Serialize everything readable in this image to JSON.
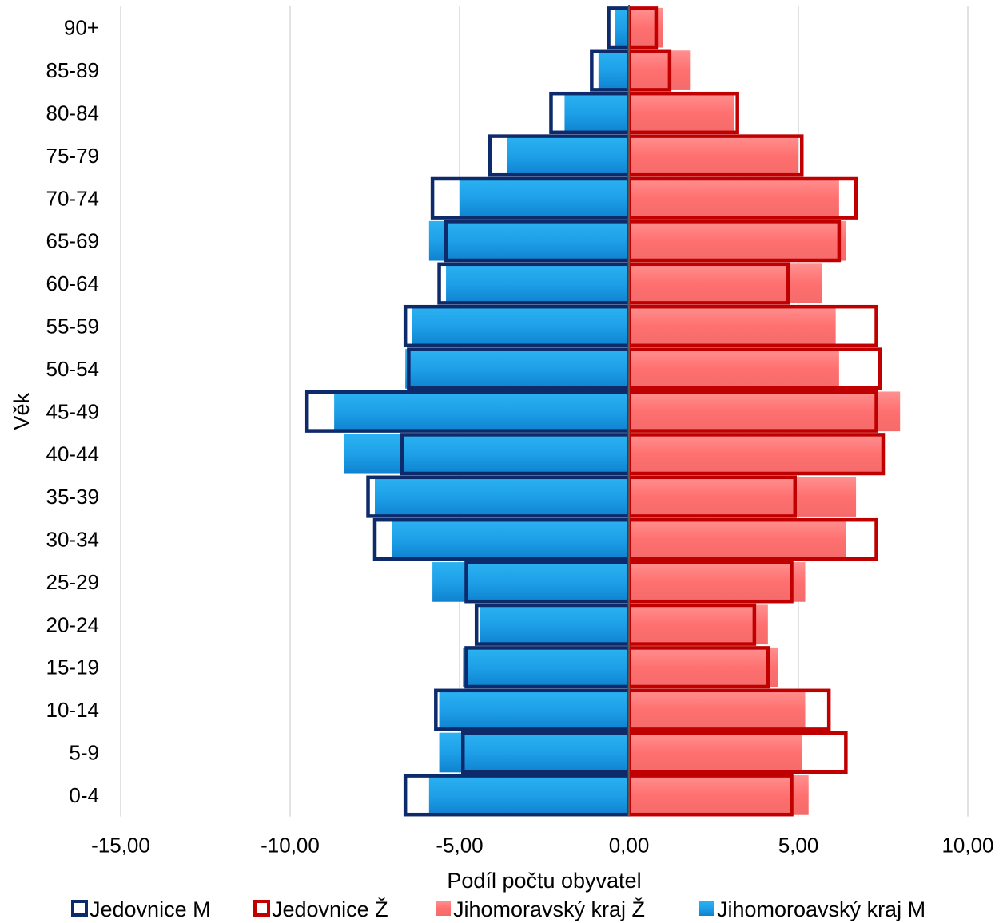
{
  "chart_data": {
    "type": "bar",
    "orientation": "horizontal",
    "subtype": "population-pyramid",
    "title": "",
    "xlabel": "Podíl počtu obyvatel",
    "ylabel": "Věk",
    "xlim": [
      -15,
      10
    ],
    "x_ticks": [
      -15,
      -10,
      -5,
      0,
      5,
      10
    ],
    "x_tick_labels": [
      "-15,00",
      "-10,00",
      "-5,00",
      "0,00",
      "5,00",
      "10,00"
    ],
    "grid": "vertical",
    "legend_position": "bottom",
    "categories": [
      "0-4",
      "5-9",
      "10-14",
      "15-19",
      "20-24",
      "25-29",
      "30-34",
      "35-39",
      "40-44",
      "45-49",
      "50-54",
      "55-59",
      "60-64",
      "65-69",
      "70-74",
      "75-79",
      "80-84",
      "85-89",
      "90+"
    ],
    "series": [
      {
        "name": "Jedovnice M",
        "style": "outline",
        "color": "#0d2a6b",
        "values": [
          -6.6,
          -4.9,
          -5.7,
          -4.8,
          -4.5,
          -4.8,
          -7.5,
          -7.7,
          -6.7,
          -9.5,
          -6.5,
          -6.6,
          -5.6,
          -5.4,
          -5.8,
          -4.1,
          -2.3,
          -1.1,
          -0.6
        ]
      },
      {
        "name": "Jedovnice Ž",
        "style": "outline",
        "color": "#c00000",
        "values": [
          4.8,
          6.4,
          5.9,
          4.1,
          3.7,
          4.8,
          7.3,
          4.9,
          7.5,
          7.3,
          7.4,
          7.3,
          4.7,
          6.2,
          6.7,
          5.1,
          3.2,
          1.2,
          0.8
        ]
      },
      {
        "name": "Jihomoravský kraj Ž",
        "style": "fill",
        "color": "#ff7a7a",
        "values": [
          5.3,
          5.1,
          5.2,
          4.4,
          4.1,
          5.2,
          6.4,
          6.7,
          7.5,
          8.0,
          6.2,
          6.1,
          5.7,
          6.4,
          6.2,
          5.0,
          3.1,
          1.8,
          1.0
        ]
      },
      {
        "name": "Jihomoroavský kraj M",
        "style": "fill",
        "color": "#1ea0e8",
        "values": [
          -5.9,
          -5.6,
          -5.6,
          -4.9,
          -4.4,
          -5.8,
          -7.0,
          -7.5,
          -8.4,
          -8.7,
          -6.6,
          -6.4,
          -5.4,
          -5.9,
          -5.0,
          -3.6,
          -1.9,
          -0.9,
          -0.4
        ]
      }
    ]
  }
}
